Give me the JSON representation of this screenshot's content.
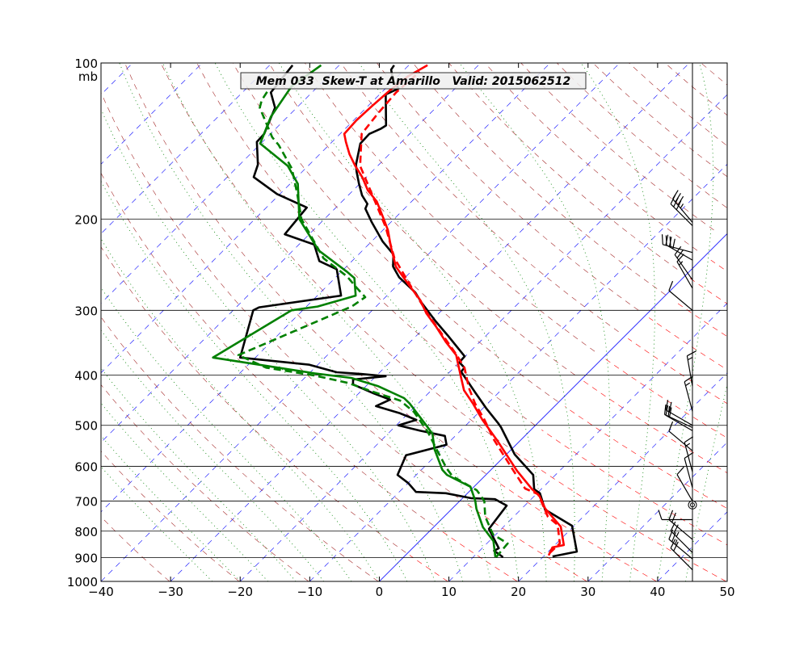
{
  "chart_data": {
    "type": "line",
    "subtype": "skew-t log-p",
    "title": "Mem 033  Skew-T at Amarillo   Valid: 2015062512",
    "xlabel": "",
    "ylabel": "",
    "y_unit_label": "mb",
    "xlim": [
      -40,
      50
    ],
    "ylim": [
      1000,
      100
    ],
    "xticks": [
      -40,
      -30,
      -20,
      -10,
      0,
      10,
      20,
      30,
      40,
      50
    ],
    "xtick_labels": [
      "−40",
      "−30",
      "−20",
      "−10",
      "0",
      "10",
      "20",
      "30",
      "40",
      "50"
    ],
    "yticks": [
      100,
      200,
      300,
      400,
      500,
      600,
      700,
      800,
      900,
      1000
    ],
    "ytick_labels": [
      "100",
      "200",
      "300",
      "400",
      "500",
      "600",
      "700",
      "800",
      "900",
      "1000"
    ],
    "colors": {
      "isotherm": "#0000ff",
      "dry_adiabat": "#a52a2a",
      "dry_adiabat_warm": "#ff0000",
      "moist_adiabat": "#008000",
      "temperature": "#ff0000",
      "dewpoint": "#008000",
      "member": "#000000"
    },
    "series": [
      {
        "name": "member-temperature",
        "color": "#000000",
        "style": "solid",
        "pressure": [
          895,
          876,
          781,
          727,
          676,
          664,
          623,
          569,
          504,
          495,
          463,
          432,
          414,
          394,
          387,
          378,
          368,
          335,
          315,
          290,
          277,
          259,
          247,
          234,
          221,
          212,
          203,
          191,
          187,
          180,
          171,
          162,
          157,
          143,
          137,
          134,
          132,
          115,
          112,
          108,
          103,
          101
        ],
        "temperature": [
          21.3,
          24.1,
          19.7,
          13.5,
          10.4,
          9.0,
          6.8,
          1.2,
          -4.7,
          -5.7,
          -9.6,
          -13.4,
          -15.7,
          -18.4,
          -18.5,
          -20.0,
          -20.1,
          -25.6,
          -29.3,
          -34.0,
          -36.4,
          -40.9,
          -43.3,
          -45.0,
          -48.4,
          -50.5,
          -52.7,
          -55.6,
          -56.0,
          -58.0,
          -60.1,
          -62.2,
          -63.3,
          -65.7,
          -65.8,
          -64.9,
          -64.6,
          -69.1,
          -68.1,
          -70.1,
          -71.9,
          -72.1
        ]
      },
      {
        "name": "member-dewpoint",
        "color": "#000000",
        "style": "solid",
        "pressure": [
          898,
          873,
          863,
          792,
          714,
          694,
          691,
          676,
          672,
          646,
          623,
          571,
          545,
          524,
          512,
          500,
          488,
          474,
          459,
          446,
          434,
          417,
          408,
          402,
          398,
          395,
          382,
          370,
          300,
          296,
          281,
          250,
          241,
          224,
          214,
          190,
          179,
          166,
          157,
          142,
          137,
          122,
          114,
          101
        ],
        "temperature": [
          14.3,
          12.1,
          12.4,
          8.2,
          7.4,
          4.8,
          1.2,
          -3.1,
          -7.6,
          -10.0,
          -12.7,
          -14.3,
          -10.0,
          -11.5,
          -15.8,
          -19.7,
          -17.9,
          -21.2,
          -25.7,
          -24.6,
          -27.8,
          -32.1,
          -32.8,
          -28.6,
          -32.5,
          -36.2,
          -41.2,
          -52.2,
          -57.1,
          -56.7,
          -46.6,
          -51.0,
          -54.7,
          -57.8,
          -63.5,
          -64.2,
          -70.4,
          -76.2,
          -77.4,
          -80.8,
          -80.9,
          -83.1,
          -85.9,
          -86.7
        ]
      },
      {
        "name": "mean-temperature",
        "color": "#ff0000",
        "style": "solid",
        "pressure": [
          891,
          860,
          851,
          784,
          724,
          684,
          664,
          612,
          534,
          488,
          454,
          428,
          401,
          366,
          345,
          323,
          304,
          287,
          267,
          247,
          226,
          210,
          199,
          185,
          176,
          166,
          158,
          150,
          142,
          137,
          129,
          121,
          113,
          106,
          101
        ],
        "temperature": [
          20.6,
          20.0,
          21.3,
          18.2,
          13.4,
          10.7,
          8.7,
          3.9,
          -3.4,
          -8.4,
          -12.1,
          -15.3,
          -17.9,
          -21.5,
          -24.9,
          -28.4,
          -31.8,
          -34.5,
          -38.6,
          -42.9,
          -46.5,
          -49.3,
          -51.7,
          -55.0,
          -57.9,
          -60.6,
          -63.2,
          -65.7,
          -68.0,
          -69.4,
          -69.6,
          -69.4,
          -69.1,
          -68.5,
          -67.3
        ]
      },
      {
        "name": "control-temperature",
        "color": "#ff0000",
        "style": "dashed",
        "pressure": [
          882,
          845,
          778,
          750,
          679,
          662,
          612,
          534,
          488,
          454,
          423,
          388,
          366,
          306,
          265,
          238,
          207,
          182,
          158,
          137,
          125,
          114,
          104
        ],
        "temperature": [
          20.4,
          20.5,
          17.5,
          14.9,
          10.3,
          7.6,
          3.4,
          -3.8,
          -8.1,
          -11.8,
          -15.0,
          -18.4,
          -21.4,
          -31.3,
          -38.8,
          -44.3,
          -50.1,
          -56.0,
          -62.5,
          -66.9,
          -67.5,
          -67.9,
          -67.5
        ]
      },
      {
        "name": "mean-dewpoint",
        "color": "#008000",
        "style": "solid",
        "pressure": [
          898,
          836,
          786,
          724,
          699,
          657,
          623,
          609,
          557,
          519,
          500,
          454,
          443,
          420,
          405,
          397,
          370,
          300,
          295,
          281,
          260,
          253,
          230,
          200,
          171,
          158,
          143,
          127,
          111,
          101
        ],
        "temperature": [
          13.2,
          10.6,
          7.1,
          3.5,
          2.2,
          -0.5,
          -5.6,
          -7.0,
          -11.0,
          -13.6,
          -15.7,
          -21.2,
          -22.8,
          -28.3,
          -33.3,
          -39.2,
          -56.1,
          -51.6,
          -48.4,
          -44.5,
          -47.2,
          -49.1,
          -56.3,
          -63.6,
          -68.9,
          -72.9,
          -80.1,
          -82.4,
          -83.8,
          -82.6
        ]
      },
      {
        "name": "control-dewpoint",
        "color": "#008000",
        "style": "dashed",
        "pressure": [
          898,
          845,
          812,
          750,
          699,
          667,
          627,
          605,
          557,
          515,
          471,
          448,
          430,
          414,
          401,
          387,
          366,
          295,
          283,
          270,
          258,
          238,
          200,
          179,
          160,
          144,
          139,
          122,
          118,
          112
        ],
        "temperature": [
          13.3,
          13.0,
          9.6,
          5.9,
          3.5,
          0.9,
          -4.6,
          -6.6,
          -10.7,
          -14.5,
          -19.4,
          -23.0,
          -28.4,
          -33.1,
          -38.8,
          -47.0,
          -52.8,
          -43.5,
          -42.9,
          -45.8,
          -48.5,
          -54.5,
          -63.3,
          -67.5,
          -71.9,
          -77.2,
          -79.3,
          -85.3,
          -86.1,
          -86.7
        ]
      }
    ],
    "wind_barbs": [
      {
        "pressure": 203,
        "direction": 320,
        "speed_kt": 35
      },
      {
        "pressure": 206,
        "direction": 315,
        "speed_kt": 30
      },
      {
        "pressure": 232,
        "direction": 285,
        "speed_kt": 30
      },
      {
        "pressure": 240,
        "direction": 300,
        "speed_kt": 30
      },
      {
        "pressure": 262,
        "direction": 325,
        "speed_kt": 20
      },
      {
        "pressure": 272,
        "direction": 330,
        "speed_kt": 15
      },
      {
        "pressure": 300,
        "direction": 310,
        "speed_kt": 10
      },
      {
        "pressure": 420,
        "direction": 350,
        "speed_kt": 15
      },
      {
        "pressure": 470,
        "direction": 345,
        "speed_kt": 15
      },
      {
        "pressure": 500,
        "direction": 300,
        "speed_kt": 20
      },
      {
        "pressure": 505,
        "direction": 295,
        "speed_kt": 20
      },
      {
        "pressure": 512,
        "direction": 300,
        "speed_kt": 20
      },
      {
        "pressure": 560,
        "direction": 310,
        "speed_kt": 10
      },
      {
        "pressure": 615,
        "direction": 345,
        "speed_kt": 15
      },
      {
        "pressure": 660,
        "direction": 345,
        "speed_kt": 10
      },
      {
        "pressure": 700,
        "direction": 330,
        "speed_kt": 10
      },
      {
        "pressure": 712,
        "direction": 0,
        "speed_kt": 0
      },
      {
        "pressure": 760,
        "direction": 270,
        "speed_kt": 10
      },
      {
        "pressure": 830,
        "direction": 310,
        "speed_kt": 20
      },
      {
        "pressure": 880,
        "direction": 315,
        "speed_kt": 25
      },
      {
        "pressure": 905,
        "direction": 310,
        "speed_kt": 25
      },
      {
        "pressure": 950,
        "direction": 315,
        "speed_kt": 20
      }
    ]
  }
}
